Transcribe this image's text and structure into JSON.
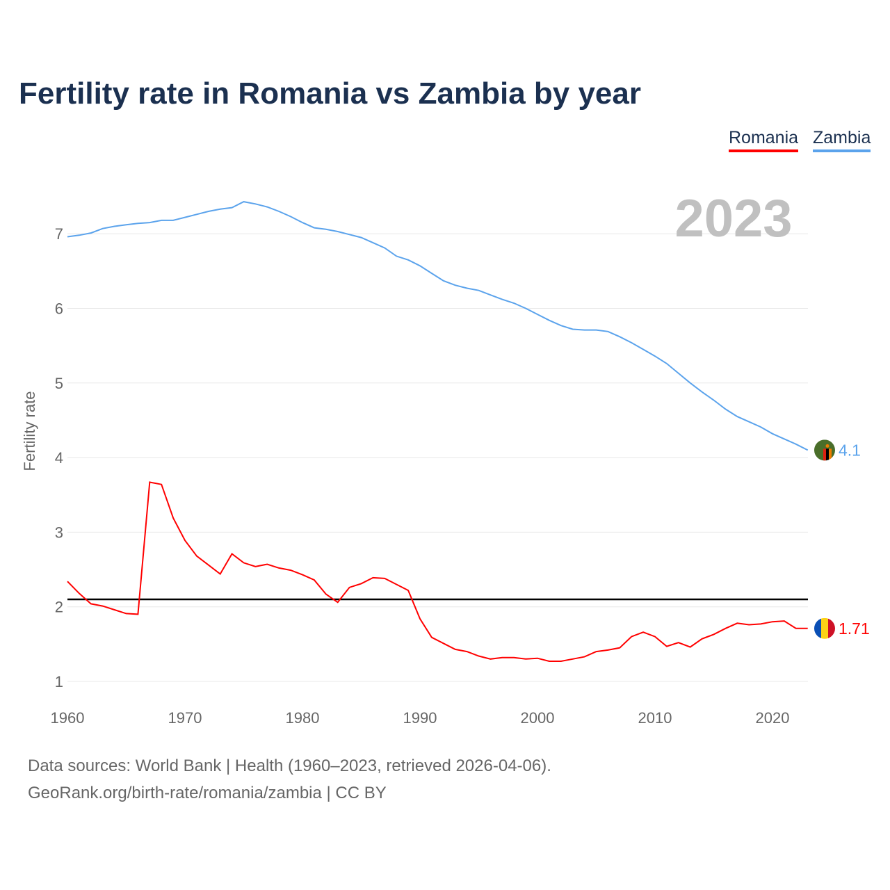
{
  "title": "Fertility rate in Romania vs Zambia by year",
  "legend": {
    "romania": "Romania",
    "zambia": "Zambia"
  },
  "source_line1": "Data sources: World Bank | Health (1960–2023, retrieved 2026-04-06).",
  "source_line2": "GeoRank.org/birth-rate/romania/zambia | CC BY",
  "chart_data": {
    "type": "line",
    "title": "Fertility rate in Romania vs Zambia by year",
    "xlabel": "",
    "ylabel": "Fertility rate",
    "year_label": "2023",
    "xlim": [
      1960,
      2023
    ],
    "ylim": [
      1,
      7.5
    ],
    "x_ticks": [
      "1960",
      "1970",
      "1980",
      "1990",
      "2000",
      "2010",
      "2020"
    ],
    "y_ticks": [
      "1",
      "2",
      "3",
      "4",
      "5",
      "6",
      "7"
    ],
    "reference_line": 2.1,
    "legend_position": "top-right",
    "x_start": 1960,
    "series": [
      {
        "name": "Romania",
        "color": "#ff0000",
        "end_label": "1.71",
        "values": [
          2.34,
          2.18,
          2.04,
          2.01,
          1.96,
          1.91,
          1.9,
          3.67,
          3.64,
          3.19,
          2.89,
          2.68,
          2.56,
          2.44,
          2.71,
          2.59,
          2.54,
          2.57,
          2.52,
          2.49,
          2.43,
          2.36,
          2.17,
          2.06,
          2.26,
          2.31,
          2.39,
          2.38,
          2.3,
          2.22,
          1.84,
          1.59,
          1.51,
          1.43,
          1.4,
          1.34,
          1.3,
          1.32,
          1.32,
          1.3,
          1.31,
          1.27,
          1.27,
          1.3,
          1.33,
          1.4,
          1.42,
          1.45,
          1.6,
          1.66,
          1.6,
          1.47,
          1.52,
          1.46,
          1.57,
          1.63,
          1.71,
          1.78,
          1.76,
          1.77,
          1.8,
          1.81,
          1.71,
          1.71
        ]
      },
      {
        "name": "Zambia",
        "color": "#5ba3ec",
        "end_label": "4.1",
        "values": [
          6.96,
          6.98,
          7.01,
          7.07,
          7.1,
          7.12,
          7.14,
          7.15,
          7.18,
          7.18,
          7.22,
          7.26,
          7.3,
          7.33,
          7.35,
          7.43,
          7.4,
          7.36,
          7.3,
          7.23,
          7.15,
          7.08,
          7.06,
          7.03,
          6.99,
          6.95,
          6.88,
          6.81,
          6.7,
          6.65,
          6.57,
          6.47,
          6.37,
          6.31,
          6.27,
          6.24,
          6.18,
          6.12,
          6.07,
          6.0,
          5.92,
          5.84,
          5.77,
          5.72,
          5.71,
          5.71,
          5.69,
          5.62,
          5.54,
          5.45,
          5.36,
          5.26,
          5.13,
          5.0,
          4.88,
          4.77,
          4.65,
          4.55,
          4.48,
          4.41,
          4.32,
          4.25,
          4.18,
          4.1
        ]
      }
    ]
  }
}
